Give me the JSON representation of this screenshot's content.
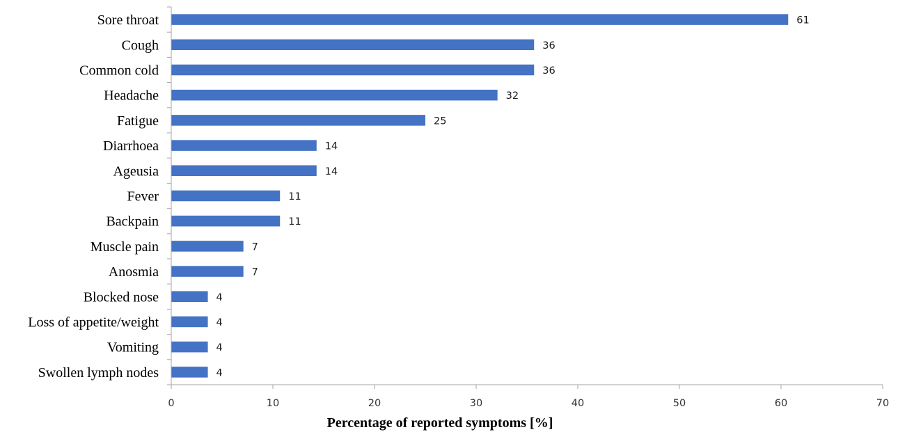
{
  "chart_data": {
    "type": "bar",
    "orientation": "horizontal",
    "categories": [
      "Sore throat",
      "Cough",
      "Common cold",
      "Headache",
      "Fatigue",
      "Diarrhoea",
      "Ageusia",
      "Fever",
      "Backpain",
      "Muscle pain",
      "Anosmia",
      "Blocked nose",
      "Loss of appetite/weight",
      "Vomiting",
      "Swollen lymph nodes"
    ],
    "values": [
      60.7,
      35.7,
      35.7,
      32.1,
      25.0,
      14.3,
      14.3,
      10.7,
      10.7,
      7.1,
      7.1,
      3.6,
      3.6,
      3.6,
      3.6
    ],
    "data_labels": [
      "61",
      "36",
      "36",
      "32",
      "25",
      "14",
      "14",
      "11",
      "11",
      "7",
      "7",
      "4",
      "4",
      "4",
      "4"
    ],
    "title": "",
    "xlabel": "Percentage of reported symptoms [%]",
    "ylabel": "",
    "xlim": [
      0,
      70
    ],
    "xticks": [
      "0",
      "10",
      "20",
      "30",
      "40",
      "50",
      "60",
      "70"
    ],
    "grid": false,
    "legend": "none",
    "bar_color": "#4472c4"
  }
}
